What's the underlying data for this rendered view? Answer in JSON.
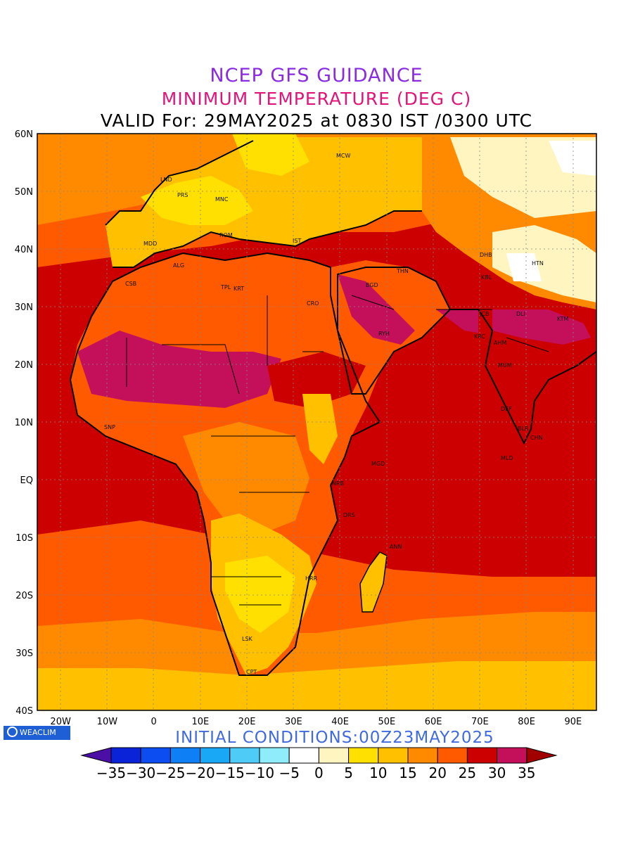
{
  "header": {
    "line1": "NCEP GFS GUIDANCE",
    "line2": "MINIMUM TEMPERATURE (DEG C)",
    "line3": "VALID For: 29MAY2025 at 0830 IST /0300 UTC"
  },
  "axes": {
    "lat_labels": [
      "60N",
      "50N",
      "40N",
      "30N",
      "20N",
      "10N",
      "EQ",
      "10S",
      "20S",
      "30S",
      "40S"
    ],
    "lon_labels": [
      "20W",
      "10W",
      "0",
      "10E",
      "20E",
      "30E",
      "40E",
      "50E",
      "60E",
      "70E",
      "80E",
      "90E"
    ],
    "lat_range": [
      -40,
      60
    ],
    "lon_range": [
      -25,
      95
    ]
  },
  "stations": [
    "MCW",
    "LND",
    "PRS",
    "MNC",
    "ROM",
    "MDD",
    "IST",
    "ALG",
    "THN",
    "DHB",
    "HTN",
    "CSB",
    "TPL",
    "KRT",
    "BGD",
    "KBL",
    "CRO",
    "DLI",
    "JCB",
    "RYH",
    "KTM",
    "KRC",
    "AHM",
    "MUM",
    "DEF",
    "SNP",
    "BLR",
    "CHN",
    "MLD",
    "MGD",
    "NRB",
    "DRS",
    "ANN",
    "HRR",
    "LSK",
    "CPT"
  ],
  "legend": {
    "labels": [
      "-35",
      "-30",
      "-25",
      "-20",
      "-15",
      "-10",
      "-5",
      "0",
      "5",
      "10",
      "15",
      "20",
      "25",
      "30",
      "35"
    ],
    "colors": [
      "#4b0fa6",
      "#0a22d8",
      "#0b4df0",
      "#0f7ff5",
      "#19a8f5",
      "#4fcbf7",
      "#8fecfb",
      "#ffffff",
      "#fff5c0",
      "#ffe000",
      "#ffc000",
      "#ff8a00",
      "#ff5a00",
      "#cc0000",
      "#c4105a",
      "#a00000"
    ]
  },
  "footer": {
    "brand": "WEACLIM",
    "initial": "INITIAL CONDITIONS:00Z23MAY2025"
  }
}
